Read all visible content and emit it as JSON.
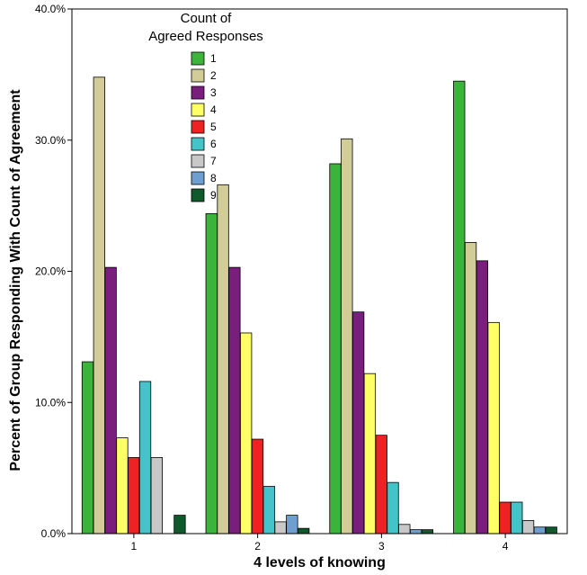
{
  "chart_data": {
    "type": "bar",
    "xlabel": "4 levels of knowing",
    "ylabel": "Percent of Group Responding With Count of Agreement",
    "ylim": [
      0,
      40
    ],
    "yticks": [
      "0.0%",
      "10.0%",
      "20.0%",
      "30.0%",
      "40.0%"
    ],
    "categories": [
      "1",
      "2",
      "3",
      "4"
    ],
    "legend": {
      "title": "Count of Agreed Responses",
      "placement": "top-center"
    },
    "grid": false,
    "series": [
      {
        "name": "1",
        "color": "#3cb43c",
        "values": [
          13.1,
          24.4,
          28.2,
          34.5
        ]
      },
      {
        "name": "2",
        "color": "#d2cc98",
        "values": [
          34.8,
          26.6,
          30.1,
          22.2
        ]
      },
      {
        "name": "3",
        "color": "#7a1e7e",
        "values": [
          20.3,
          20.3,
          16.9,
          20.8
        ]
      },
      {
        "name": "4",
        "color": "#ffff66",
        "values": [
          7.3,
          15.3,
          12.2,
          16.1
        ]
      },
      {
        "name": "5",
        "color": "#ee2222",
        "values": [
          5.8,
          7.2,
          7.5,
          2.4
        ]
      },
      {
        "name": "6",
        "color": "#44c4c8",
        "values": [
          11.6,
          3.6,
          3.9,
          2.4
        ]
      },
      {
        "name": "7",
        "color": "#c8c8c8",
        "values": [
          5.8,
          0.9,
          0.7,
          1.0
        ]
      },
      {
        "name": "8",
        "color": "#6f9fd0",
        "values": [
          0,
          1.4,
          0.3,
          0.5
        ]
      },
      {
        "name": "9",
        "color": "#0f5a2a",
        "values": [
          1.4,
          0.4,
          0.3,
          0.5
        ]
      }
    ]
  }
}
